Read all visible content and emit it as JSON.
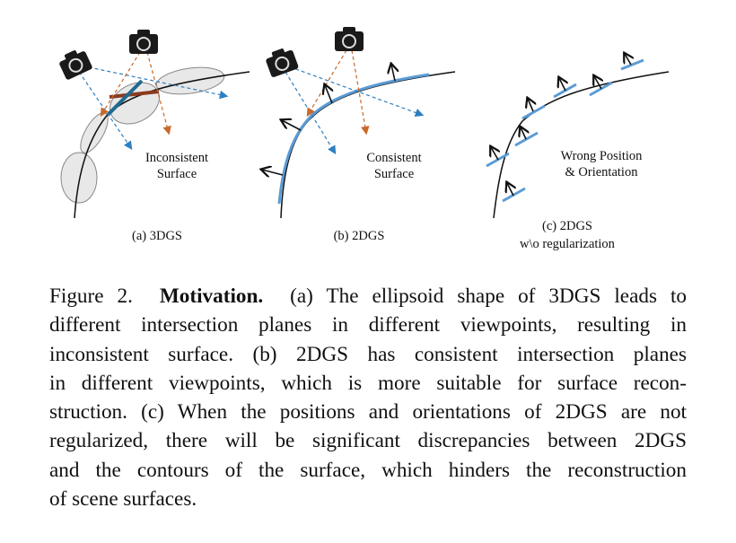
{
  "figure": {
    "panels": [
      {
        "label": "(a) 3DGS",
        "annotation": [
          "Inconsistent",
          "Surface"
        ]
      },
      {
        "label": "(b) 2DGS",
        "annotation": [
          "Consistent",
          "Surface"
        ]
      },
      {
        "label": [
          "(c) 2DGS",
          "w\\o regularization"
        ],
        "annotation": [
          "Wrong Position",
          "& Orientation"
        ]
      }
    ],
    "colors": {
      "ray_blue": "#2e7fc0",
      "ray_orange": "#c8692a",
      "splat_blue": "#5b9bd5",
      "plane_brown": "#8b3a1e",
      "ellipse_fill": "#e8e8e8"
    }
  },
  "caption": {
    "figure_no": "Figure 2.",
    "title": "Motivation.",
    "lines": [
      "(a) The ellipsoid shape of 3DGS leads to",
      "different intersection planes in different viewpoints, resulting in",
      "inconsistent surface. (b) 2DGS has consistent intersection planes",
      "in different viewpoints, which is more suitable for surface recon-",
      "struction. (c) When the positions and orientations of 2DGS are not",
      "regularized, there will be significant discrepancies between 2DGS",
      "and the contours of the surface, which hinders the reconstruction",
      "of scene surfaces."
    ]
  }
}
